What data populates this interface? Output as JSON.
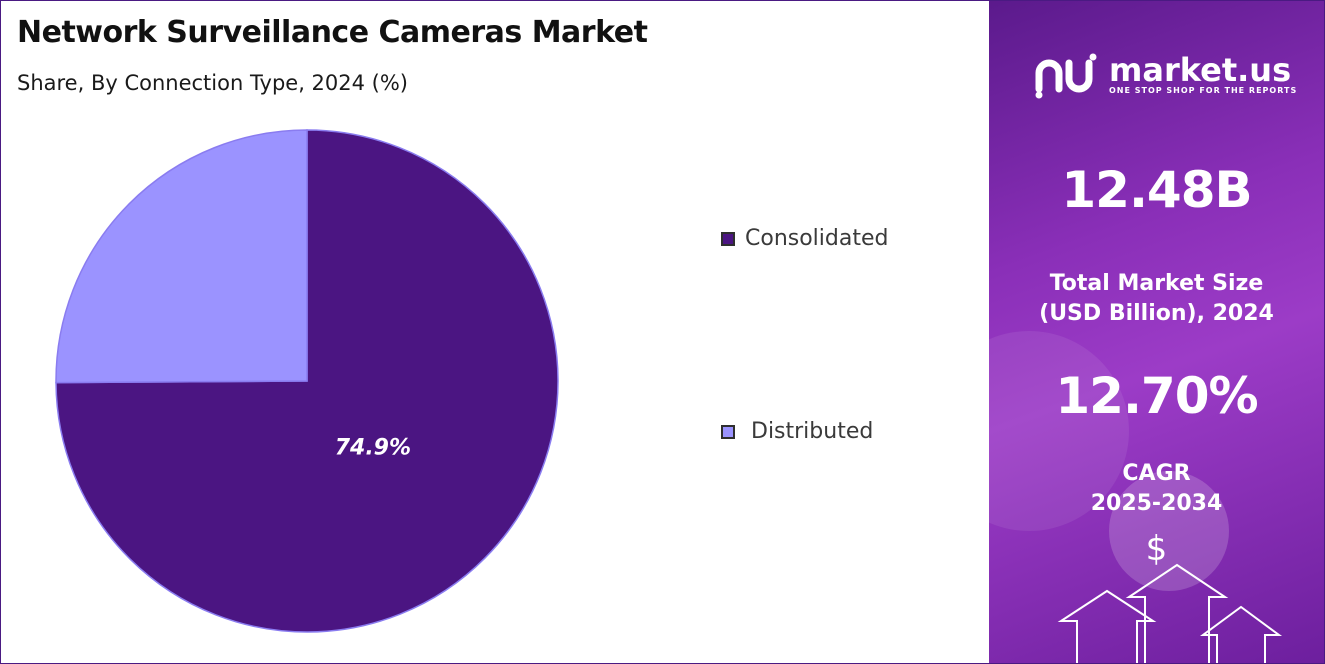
{
  "chart_data": {
    "type": "pie",
    "title": "Network Surveillance Cameras Market",
    "subtitle": "Share, By Connection Type, 2024 (%)",
    "categories": [
      "Consolidated",
      "Distributed"
    ],
    "values": [
      74.9,
      25.1
    ],
    "data_labels": [
      "74.9%",
      ""
    ],
    "colors": [
      "#4b1582",
      "#9b93ff"
    ],
    "legend_position": "right"
  },
  "sidebar": {
    "brand_name": "market.us",
    "brand_tagline": "ONE STOP SHOP FOR THE REPORTS",
    "market_size_value": "12.48B",
    "market_size_label_line1": "Total Market Size",
    "market_size_label_line2": "(USD Billion), 2024",
    "cagr_value": "12.70%",
    "cagr_label_line1": "CAGR",
    "cagr_label_line2": "2025-2034",
    "currency_symbol": "$"
  }
}
